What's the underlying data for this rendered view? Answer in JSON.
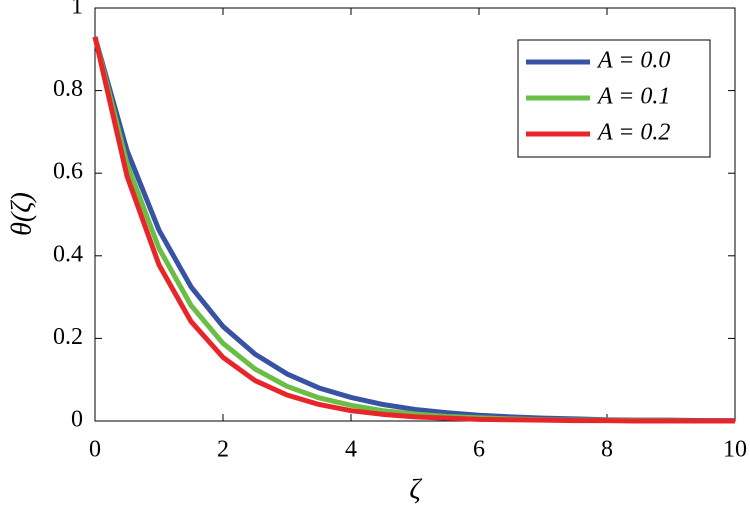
{
  "chart_data": {
    "type": "line",
    "x_label": "ζ",
    "y_label": "θ(ζ)",
    "x": [
      0,
      0.5,
      1,
      1.5,
      2,
      2.5,
      3,
      3.5,
      4,
      4.5,
      5,
      5.5,
      6,
      6.5,
      7,
      7.5,
      8,
      8.5,
      9,
      9.5,
      10
    ],
    "series": [
      {
        "name": "A = 0.0",
        "color": "#3853a4",
        "values": [
          0.93,
          0.655,
          0.462,
          0.325,
          0.229,
          0.162,
          0.114,
          0.08,
          0.057,
          0.04,
          0.028,
          0.02,
          0.014,
          0.01,
          0.007,
          0.005,
          0.003,
          0.002,
          0.002,
          0.001,
          0.001
        ]
      },
      {
        "name": "A = 0.1",
        "color": "#6abd45",
        "values": [
          0.93,
          0.623,
          0.418,
          0.28,
          0.188,
          0.126,
          0.084,
          0.056,
          0.038,
          0.025,
          0.017,
          0.011,
          0.008,
          0.005,
          0.003,
          0.002,
          0.002,
          0.001,
          0.001,
          0,
          0
        ]
      },
      {
        "name": "A = 0.2",
        "color": "#e8262a",
        "values": [
          0.93,
          0.593,
          0.378,
          0.241,
          0.154,
          0.098,
          0.063,
          0.04,
          0.025,
          0.016,
          0.01,
          0.007,
          0.004,
          0.003,
          0.002,
          0.001,
          0.001,
          0,
          0,
          0,
          0
        ]
      }
    ],
    "xlim": [
      0,
      10
    ],
    "xticks": [
      0,
      2,
      4,
      6,
      8,
      10
    ],
    "ylim": [
      0,
      1
    ],
    "yticks": [
      0,
      0.2,
      0.4,
      0.6,
      0.8,
      1
    ],
    "legend": "upper right"
  }
}
